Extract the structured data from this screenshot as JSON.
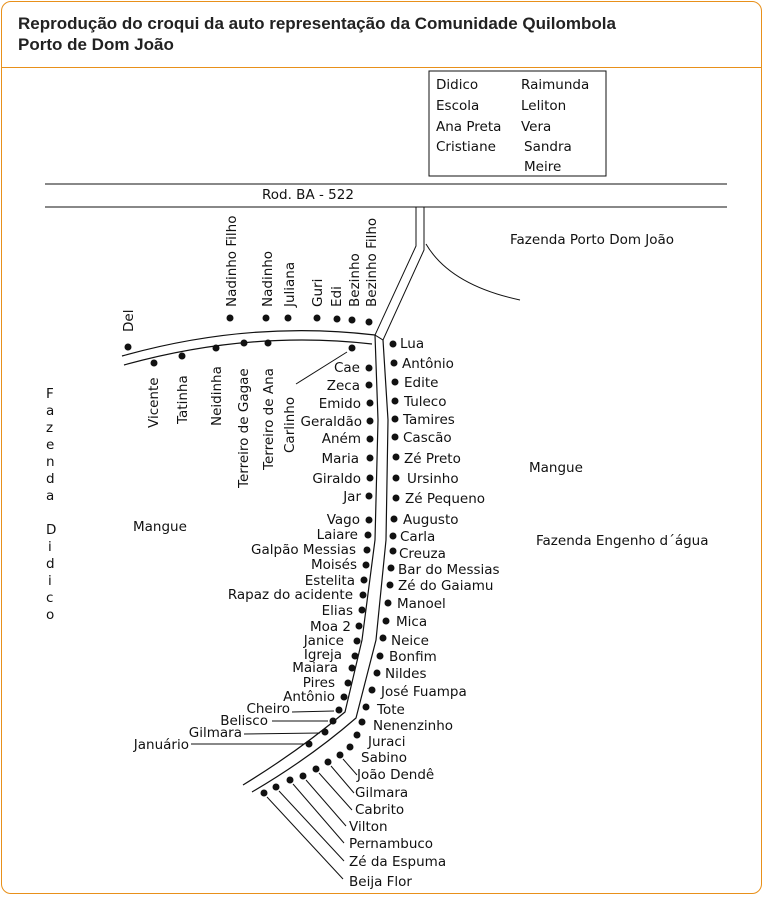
{
  "title_lines": [
    "Reprodução do croqui da auto representação da Comunidade Quilombola",
    "Porto de Dom João"
  ],
  "legend_box": {
    "col1": [
      "Didico",
      "Escola",
      "Ana Preta",
      "Cristiane"
    ],
    "col2": [
      "Raimunda",
      "Leliton",
      "Vera",
      "Sandra",
      "Meire"
    ]
  },
  "road_label": "Rod. BA - 522",
  "area_labels": {
    "fazenda_porto": "Fazenda Porto Dom João",
    "mangue_right": "Mangue",
    "fazenda_engenho": "Fazenda Engenho d´água",
    "mangue_left": "Mangue",
    "fazenda_didico": "Fazenda Didico"
  },
  "top_branch_names": [
    "Nadinho Filho",
    "Nadinho",
    "Juliana",
    "Guri",
    "Edi",
    "Bezinho",
    "Bezinho Filho"
  ],
  "lower_branch_names": [
    "Del",
    "Vicente",
    "Tatinha",
    "Neidinha",
    "Terreiro de Gagae",
    "Terreiro de Ana",
    "Carlinho"
  ],
  "left_side_names": [
    "Cae",
    "Zeca",
    "Emido",
    "Geraldão",
    "Aném",
    "Maria",
    "Giraldo",
    "Jar",
    "Vago",
    "Laiare",
    "Galpão Messias",
    "Moisés",
    "Estelita",
    "Rapaz do acidente",
    "Elias",
    "Moa 2",
    "Janice",
    "Igreja",
    "Maiara",
    "Pires",
    "Antônio",
    "Cheiro",
    "Belisco",
    "Gilmara",
    "Januário"
  ],
  "right_side_names": [
    "Lua",
    "Antônio",
    "Edite",
    "Tuleco",
    "Tamires",
    "Cascão",
    "Zé Preto",
    "Ursinho",
    "Zé Pequeno",
    "Augusto",
    "Carla",
    "Creuza",
    "Bar do Messias",
    "Zé do Gaiamu",
    "Manoel",
    "Mica",
    "Neice",
    "Bonfim",
    "Nildes",
    "José Fuampa",
    "Tote",
    "Nenenzinho",
    "Juraci",
    "Sabino",
    "João Dendê",
    "Gilmara",
    "Cabrito",
    "Vilton",
    "Pernambuco",
    "Zé da Espuma",
    "Beija Flor"
  ]
}
